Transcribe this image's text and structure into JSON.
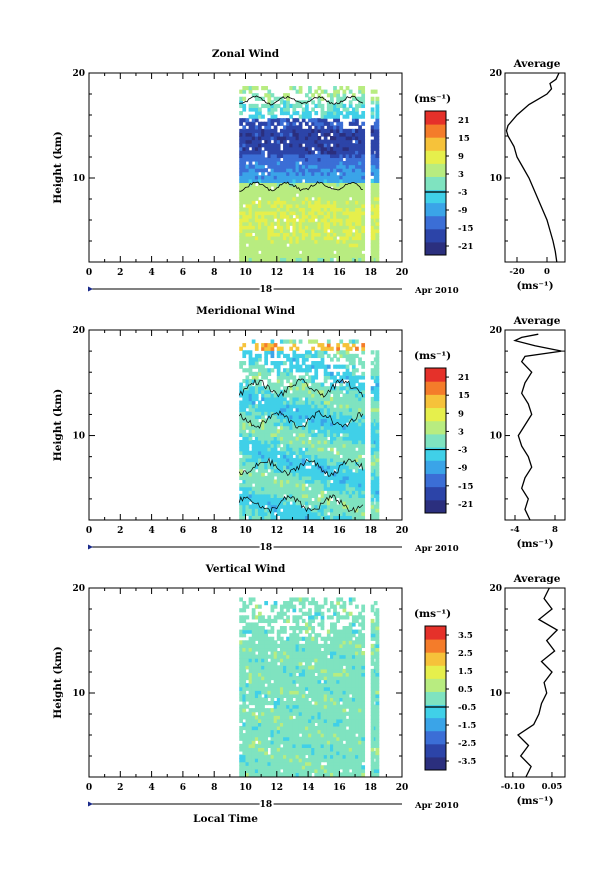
{
  "chart_data": [
    {
      "type": "heatmap",
      "title": "Zonal Wind",
      "ylabel": "Height (km)",
      "xlabel": "",
      "xlim": [
        0,
        20
      ],
      "ylim": [
        2,
        20
      ],
      "xticks": [
        "0",
        "2",
        "4",
        "6",
        "8",
        "10",
        "12",
        "14",
        "16",
        "18",
        "20"
      ],
      "yticks": [
        "10",
        "20"
      ],
      "date_label": "18",
      "month_label": "Apr 2010",
      "colorbar": {
        "unit": "(ms⁻¹)",
        "ticks": [
          "21",
          "15",
          "9",
          "3",
          "-3",
          "-9",
          "-15",
          "-21"
        ],
        "range": [
          -24,
          24
        ]
      },
      "profile": {
        "title": "Average",
        "xlabel": "(ms⁻¹)",
        "xticks": [
          "-20",
          "0"
        ],
        "xlim": [
          -28,
          12
        ],
        "points": [
          [
            6.5,
            2
          ],
          [
            5.5,
            3
          ],
          [
            4,
            4
          ],
          [
            2,
            5
          ],
          [
            0,
            6
          ],
          [
            -3,
            7
          ],
          [
            -6,
            8
          ],
          [
            -9,
            9
          ],
          [
            -12,
            10
          ],
          [
            -16,
            11
          ],
          [
            -20,
            12
          ],
          [
            -22,
            13
          ],
          [
            -26,
            14
          ],
          [
            -27,
            14.5
          ],
          [
            -26,
            15
          ],
          [
            -20,
            16
          ],
          [
            -12,
            17
          ],
          [
            -6,
            17.5
          ],
          [
            0,
            18
          ],
          [
            3,
            18.5
          ],
          [
            2,
            19
          ],
          [
            6,
            19.4
          ],
          [
            8,
            20
          ]
        ]
      },
      "data_range": {
        "start": 9.6,
        "end": 18.5,
        "top": 18.5
      }
    },
    {
      "type": "heatmap",
      "title": "Meridional Wind",
      "ylabel": "Height (km)",
      "xlabel": "",
      "xlim": [
        0,
        20
      ],
      "ylim": [
        2,
        20
      ],
      "xticks": [
        "0",
        "2",
        "4",
        "6",
        "8",
        "10",
        "12",
        "14",
        "16",
        "18",
        "20"
      ],
      "yticks": [
        "10",
        "20"
      ],
      "date_label": "18",
      "month_label": "Apr 2010",
      "colorbar": {
        "unit": "(ms⁻¹)",
        "ticks": [
          "21",
          "15",
          "9",
          "3",
          "-3",
          "-9",
          "-15",
          "-21"
        ],
        "range": [
          -24,
          24
        ]
      },
      "profile": {
        "title": "Average",
        "xlabel": "(ms⁻¹)",
        "xticks": [
          "-4",
          "8"
        ],
        "xlim": [
          -7,
          11
        ],
        "points": [
          [
            0.5,
            2
          ],
          [
            -1,
            3
          ],
          [
            0,
            4
          ],
          [
            -2,
            5
          ],
          [
            -1,
            6
          ],
          [
            1,
            7
          ],
          [
            0,
            8
          ],
          [
            -2,
            9
          ],
          [
            -3,
            10
          ],
          [
            -1,
            11
          ],
          [
            1,
            12
          ],
          [
            0,
            13
          ],
          [
            -2,
            14
          ],
          [
            -1,
            15
          ],
          [
            1,
            16
          ],
          [
            -2,
            17
          ],
          [
            -1,
            17.5
          ],
          [
            10,
            18
          ],
          [
            2,
            18.5
          ],
          [
            -4,
            19
          ],
          [
            -2,
            19.3
          ],
          [
            3,
            19.6
          ]
        ]
      },
      "data_range": {
        "start": 9.6,
        "end": 18.5,
        "top": 18.8
      }
    },
    {
      "type": "heatmap",
      "title": "Vertical Wind",
      "ylabel": "Height (km)",
      "xlabel": "Local Time",
      "xlim": [
        0,
        20
      ],
      "ylim": [
        2,
        20
      ],
      "xticks": [
        "0",
        "2",
        "4",
        "6",
        "8",
        "10",
        "12",
        "14",
        "16",
        "18",
        "20"
      ],
      "yticks": [
        "10",
        "20"
      ],
      "date_label": "18",
      "month_label": "Apr 2010",
      "colorbar": {
        "unit": "(ms⁻¹)",
        "ticks": [
          "3.5",
          "2.5",
          "1.5",
          "0.5",
          "-0.5",
          "-1.5",
          "-2.5",
          "-3.5"
        ],
        "range": [
          -4,
          4
        ]
      },
      "profile": {
        "title": "Average",
        "xlabel": "(ms⁻¹)",
        "xticks": [
          "-0.10",
          "0.05"
        ],
        "xlim": [
          -0.13,
          0.1
        ],
        "points": [
          [
            -0.05,
            2
          ],
          [
            -0.03,
            3
          ],
          [
            -0.07,
            4
          ],
          [
            -0.04,
            5
          ],
          [
            -0.08,
            6
          ],
          [
            -0.02,
            7
          ],
          [
            0.0,
            8
          ],
          [
            0.01,
            9
          ],
          [
            0.03,
            10
          ],
          [
            0.02,
            11
          ],
          [
            0.05,
            12
          ],
          [
            0.01,
            13
          ],
          [
            0.06,
            14
          ],
          [
            0.03,
            15
          ],
          [
            0.07,
            16
          ],
          [
            0.0,
            17
          ],
          [
            0.05,
            18
          ],
          [
            0.02,
            19
          ],
          [
            0.04,
            20
          ]
        ]
      },
      "data_range": {
        "start": 9.6,
        "end": 18.5,
        "top": 19.0
      }
    }
  ]
}
